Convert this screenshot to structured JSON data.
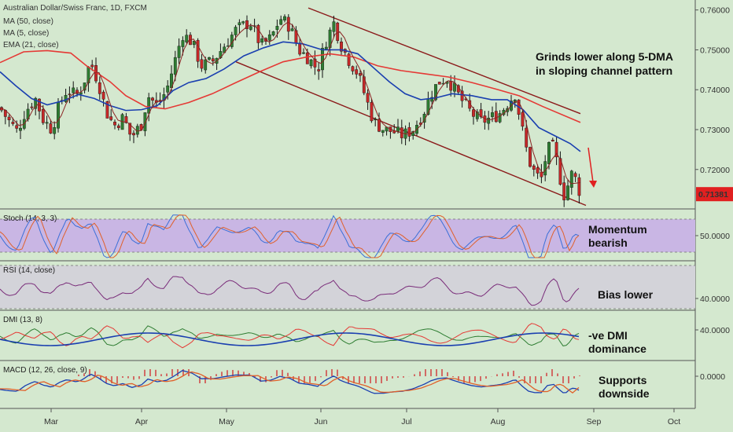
{
  "header": {
    "title": "Australian Dollar/Swiss Franc, 1D, FXCM",
    "indicators": [
      "MA (50, close)",
      "MA (5, close)",
      "EMA (21, close)"
    ]
  },
  "annotations": {
    "main_line1": "Grinds lower along 5-DMA",
    "main_line2": "in sloping channel pattern",
    "stoch_line1": "Momentum",
    "stoch_line2": "bearish",
    "rsi": "Bias lower",
    "dmi_line1": "-ve DMI",
    "dmi_line2": "dominance",
    "macd_line1": "Supports",
    "macd_line2": "downside"
  },
  "price_tag": {
    "value": "0.71381",
    "color": "#e02020"
  },
  "colors": {
    "background": "#d4e8cf",
    "up_candle": "#2e7d32",
    "down_candle": "#c62828",
    "ma50": "#e53935",
    "ma5": "#8b2323",
    "ema21": "#1a3fb0",
    "channel": "#8b1a1a",
    "stoch_band": "#c9b6e4",
    "rsi_band": "#d3d3d9"
  },
  "chart_data": {
    "type": "candlestick",
    "title": "Australian Dollar/Swiss Franc, 1D, FXCM",
    "x_ticks": [
      "Mar",
      "Apr",
      "May",
      "Jun",
      "Jul",
      "Aug",
      "Sep",
      "Oct"
    ],
    "price_axis": {
      "ticks": [
        "0.76000",
        "0.75000",
        "0.74000",
        "0.73000",
        "0.72000"
      ],
      "range": [
        0.7105,
        0.7625
      ]
    },
    "last_price": 0.71381,
    "close_path": [
      [
        0,
        0.7355
      ],
      [
        10,
        0.7325
      ],
      [
        22,
        0.7295
      ],
      [
        32,
        0.7345
      ],
      [
        45,
        0.7378
      ],
      [
        55,
        0.7325
      ],
      [
        66,
        0.73
      ],
      [
        75,
        0.736
      ],
      [
        85,
        0.74
      ],
      [
        97,
        0.7385
      ],
      [
        105,
        0.741
      ],
      [
        115,
        0.747
      ],
      [
        125,
        0.742
      ],
      [
        135,
        0.7345
      ],
      [
        145,
        0.731
      ],
      [
        157,
        0.733
      ],
      [
        167,
        0.728
      ],
      [
        180,
        0.7315
      ],
      [
        188,
        0.7385
      ],
      [
        200,
        0.736
      ],
      [
        212,
        0.74
      ],
      [
        222,
        0.747
      ],
      [
        232,
        0.754
      ],
      [
        244,
        0.752
      ],
      [
        256,
        0.746
      ],
      [
        270,
        0.747
      ],
      [
        285,
        0.751
      ],
      [
        300,
        0.755
      ],
      [
        318,
        0.757
      ],
      [
        332,
        0.751
      ],
      [
        345,
        0.753
      ],
      [
        356,
        0.758
      ],
      [
        368,
        0.756
      ],
      [
        380,
        0.75
      ],
      [
        392,
        0.748
      ],
      [
        404,
        0.745
      ],
      [
        414,
        0.752
      ],
      [
        425,
        0.757
      ],
      [
        432,
        0.752
      ],
      [
        442,
        0.748
      ],
      [
        455,
        0.744
      ],
      [
        465,
        0.738
      ],
      [
        475,
        0.732
      ],
      [
        488,
        0.73
      ],
      [
        500,
        0.7295
      ],
      [
        512,
        0.7285
      ],
      [
        525,
        0.73
      ],
      [
        538,
        0.734
      ],
      [
        548,
        0.739
      ],
      [
        558,
        0.742
      ],
      [
        568,
        0.743
      ],
      [
        580,
        0.7395
      ],
      [
        590,
        0.7365
      ],
      [
        600,
        0.734
      ],
      [
        612,
        0.732
      ],
      [
        625,
        0.733
      ],
      [
        635,
        0.734
      ],
      [
        645,
        0.7365
      ],
      [
        655,
        0.739
      ],
      [
        664,
        0.73
      ],
      [
        672,
        0.7225
      ],
      [
        680,
        0.719
      ],
      [
        688,
        0.7175
      ],
      [
        696,
        0.725
      ],
      [
        704,
        0.7255
      ],
      [
        712,
        0.718
      ],
      [
        718,
        0.713
      ],
      [
        726,
        0.719
      ],
      [
        732,
        0.7175
      ],
      [
        738,
        0.7138
      ]
    ],
    "ma50_path": [
      [
        0,
        0.7468
      ],
      [
        30,
        0.7495
      ],
      [
        60,
        0.7498
      ],
      [
        90,
        0.7492
      ],
      [
        110,
        0.746
      ],
      [
        140,
        0.742
      ],
      [
        160,
        0.7385
      ],
      [
        185,
        0.7358
      ],
      [
        210,
        0.7352
      ],
      [
        240,
        0.7368
      ],
      [
        270,
        0.739
      ],
      [
        300,
        0.7418
      ],
      [
        330,
        0.7445
      ],
      [
        360,
        0.747
      ],
      [
        390,
        0.7482
      ],
      [
        420,
        0.749
      ],
      [
        450,
        0.7482
      ],
      [
        480,
        0.746
      ],
      [
        510,
        0.7448
      ],
      [
        540,
        0.744
      ],
      [
        570,
        0.7432
      ],
      [
        600,
        0.7418
      ],
      [
        630,
        0.7402
      ],
      [
        660,
        0.7385
      ],
      [
        690,
        0.7358
      ],
      [
        738,
        0.7318
      ]
    ],
    "ema21_path": [
      [
        0,
        0.7445
      ],
      [
        20,
        0.741
      ],
      [
        40,
        0.7378
      ],
      [
        60,
        0.7362
      ],
      [
        80,
        0.7372
      ],
      [
        100,
        0.7388
      ],
      [
        120,
        0.7378
      ],
      [
        140,
        0.736
      ],
      [
        160,
        0.7348
      ],
      [
        180,
        0.735
      ],
      [
        200,
        0.736
      ],
      [
        220,
        0.7398
      ],
      [
        240,
        0.7418
      ],
      [
        262,
        0.7428
      ],
      [
        285,
        0.7452
      ],
      [
        310,
        0.7485
      ],
      [
        335,
        0.7505
      ],
      [
        360,
        0.752
      ],
      [
        385,
        0.7515
      ],
      [
        410,
        0.75
      ],
      [
        435,
        0.75
      ],
      [
        455,
        0.749
      ],
      [
        475,
        0.7455
      ],
      [
        495,
        0.742
      ],
      [
        515,
        0.739
      ],
      [
        535,
        0.7375
      ],
      [
        555,
        0.738
      ],
      [
        575,
        0.739
      ],
      [
        600,
        0.7385
      ],
      [
        625,
        0.7375
      ],
      [
        645,
        0.7375
      ],
      [
        665,
        0.735
      ],
      [
        685,
        0.7305
      ],
      [
        705,
        0.7285
      ],
      [
        725,
        0.7265
      ],
      [
        738,
        0.7245
      ]
    ],
    "channel_upper": [
      [
        392,
        0.7605
      ],
      [
        738,
        0.734
      ]
    ],
    "channel_lower": [
      [
        300,
        0.747
      ],
      [
        745,
        0.711
      ]
    ],
    "panels": [
      {
        "name": "Stoch (14, 3, 3)",
        "ticks": [
          "50.0000"
        ]
      },
      {
        "name": "RSI (14, close)",
        "ticks": [
          "40.0000"
        ]
      },
      {
        "name": "DMI (13, 8)",
        "ticks": [
          "40.0000"
        ]
      },
      {
        "name": "MACD (12, 26, close, 9)",
        "ticks": [
          "0.0000"
        ]
      }
    ]
  }
}
